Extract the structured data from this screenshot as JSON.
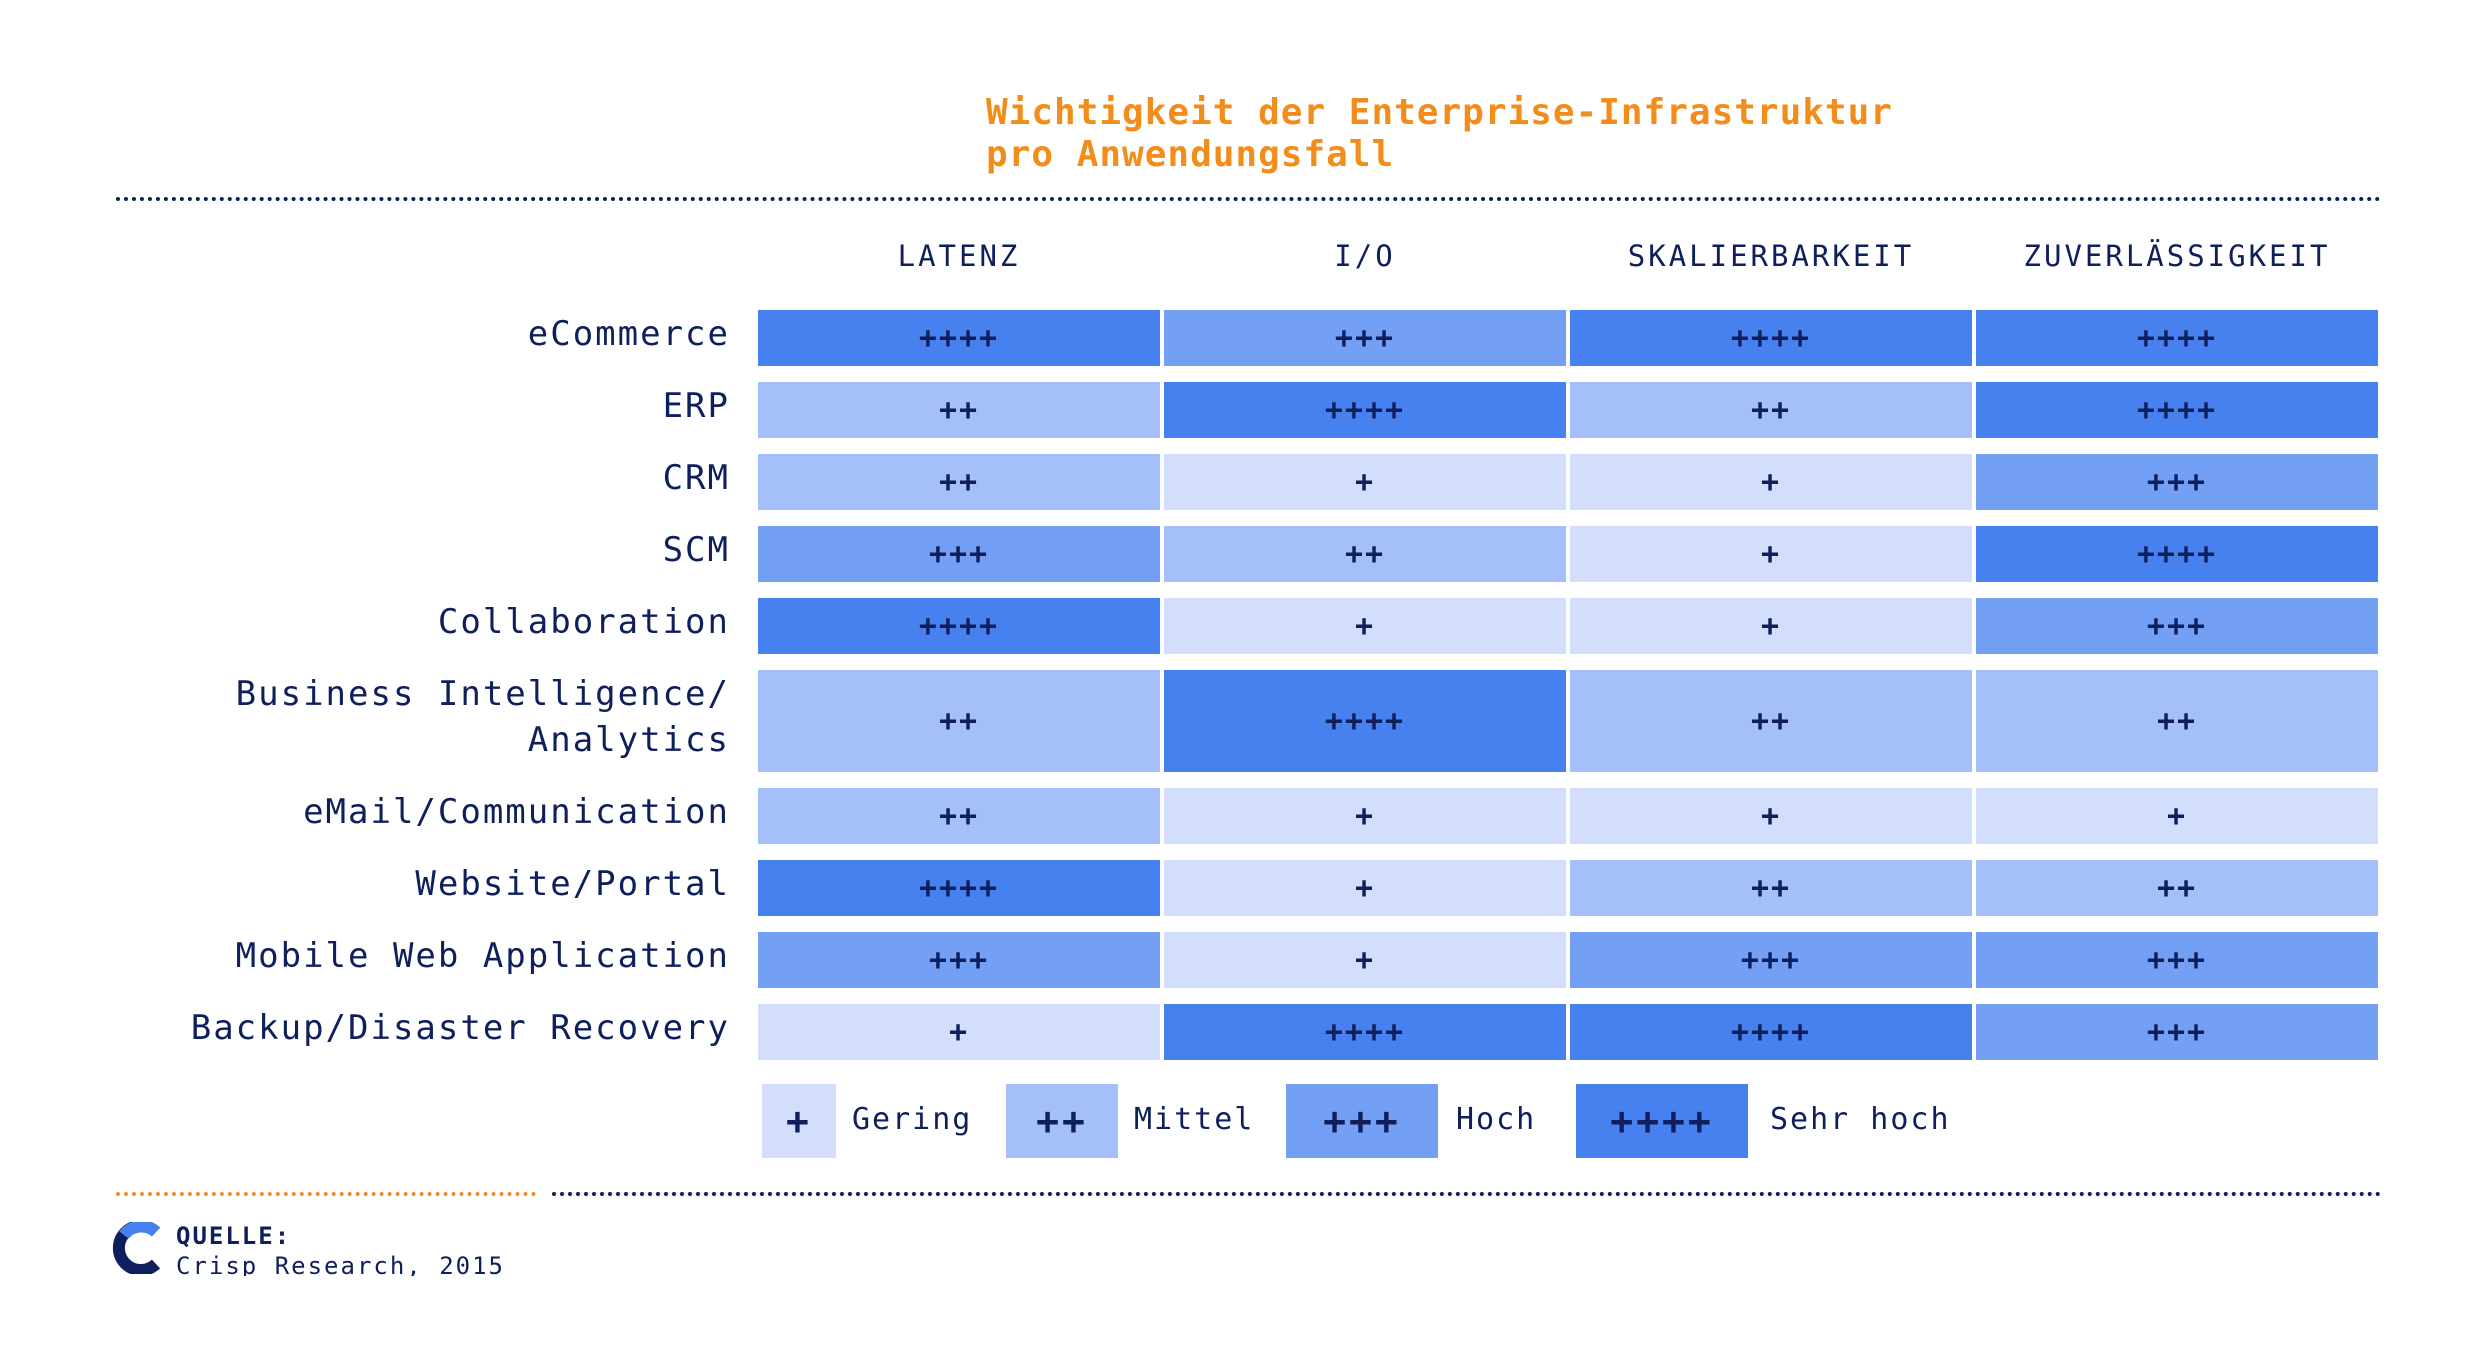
{
  "title_line1": "Wichtigkeit der Enterprise-Infrastruktur",
  "title_line2": "pro Anwendungsfall",
  "colors": {
    "title": "#f28c1a",
    "text": "#0f1f5c",
    "level1": "#d3defc",
    "level2": "#a4bff9",
    "level3": "#739ff5",
    "level4": "#4781f0"
  },
  "chart_data": {
    "type": "table",
    "columns": [
      "LATENZ",
      "I/O",
      "SKALIERBARKEIT",
      "ZUVERLÄSSIGKEIT"
    ],
    "rows": [
      {
        "label": [
          "eCommerce"
        ],
        "values": [
          4,
          3,
          4,
          4
        ]
      },
      {
        "label": [
          "ERP"
        ],
        "values": [
          2,
          4,
          2,
          4
        ]
      },
      {
        "label": [
          "CRM"
        ],
        "values": [
          2,
          1,
          1,
          3
        ]
      },
      {
        "label": [
          "SCM"
        ],
        "values": [
          3,
          2,
          1,
          4
        ]
      },
      {
        "label": [
          "Collaboration"
        ],
        "values": [
          4,
          1,
          1,
          3
        ]
      },
      {
        "label": [
          "Business Intelligence/",
          "Analytics"
        ],
        "values": [
          2,
          4,
          2,
          2
        ]
      },
      {
        "label": [
          "eMail/Communication"
        ],
        "values": [
          2,
          1,
          1,
          1
        ]
      },
      {
        "label": [
          "Website/Portal"
        ],
        "values": [
          4,
          1,
          2,
          2
        ]
      },
      {
        "label": [
          "Mobile Web Application"
        ],
        "values": [
          3,
          1,
          3,
          3
        ]
      },
      {
        "label": [
          "Backup/Disaster Recovery"
        ],
        "values": [
          1,
          4,
          4,
          3
        ]
      }
    ],
    "symbols": [
      "+",
      "++",
      "+++",
      "++++"
    ],
    "legend": [
      {
        "symbol": "+",
        "label": "Gering"
      },
      {
        "symbol": "++",
        "label": "Mittel"
      },
      {
        "symbol": "+++",
        "label": "Hoch"
      },
      {
        "symbol": "++++",
        "label": "Sehr hoch"
      }
    ]
  },
  "source": {
    "heading": "QUELLE:",
    "text": "Crisp Research, 2015",
    "logo_icon": "crisp-c-logo-icon"
  }
}
